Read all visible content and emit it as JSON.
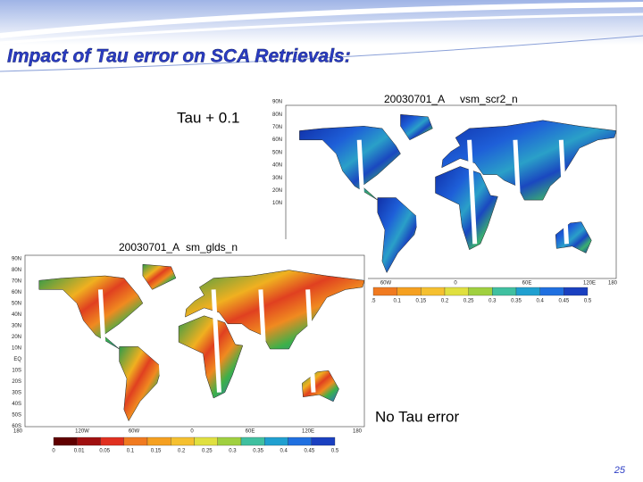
{
  "header": {
    "title": "Impact of Tau error on SCA Retrievals:"
  },
  "panels": [
    {
      "label": "Tau + 0.1",
      "map_title": [
        "20030701_A",
        "vsm_scr2_n"
      ],
      "lat_labels": [
        "90N",
        "80N",
        "70N",
        "60N",
        "50N",
        "40N",
        "30N",
        "20N",
        "10N"
      ],
      "lon_labels": [
        "60W",
        "0",
        "60E",
        "120E",
        "180"
      ],
      "colorbar_labels": [
        ".5",
        "0.1",
        "0.15",
        "0.2",
        "0.25",
        "0.3",
        "0.35",
        "0.4",
        "0.45",
        "0.5"
      ]
    },
    {
      "label": "No Tau error",
      "map_title": [
        "20030701_A",
        "sm_glds_n"
      ],
      "lat_labels": [
        "90N",
        "80N",
        "70N",
        "60N",
        "50N",
        "40N",
        "30N",
        "20N",
        "10N",
        "EQ",
        "10S",
        "20S",
        "30S",
        "40S",
        "50S",
        "60S"
      ],
      "lon_labels": [
        "180",
        "120W",
        "60W",
        "0",
        "60E",
        "120E",
        "180"
      ],
      "colorbar_labels": [
        "0",
        "0.01",
        "0.05",
        "0.1",
        "0.15",
        "0.2",
        "0.25",
        "0.3",
        "0.35",
        "0.4",
        "0.45",
        "0.5"
      ]
    }
  ],
  "footer": {
    "page_number": "25"
  }
}
